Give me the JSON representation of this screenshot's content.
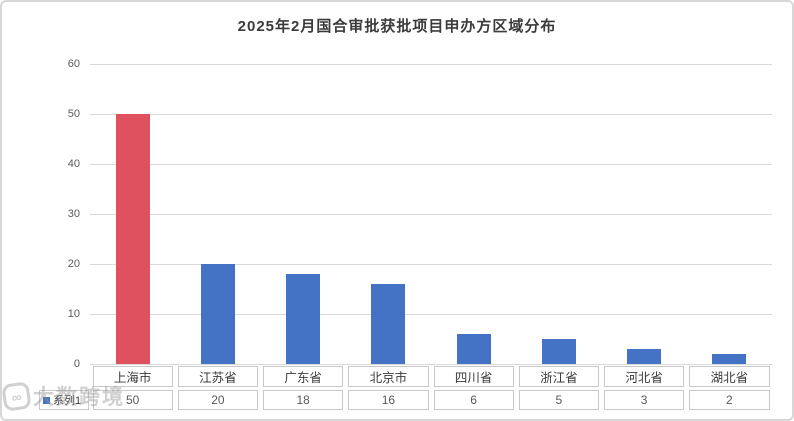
{
  "title": "2025年2月国合审批获批项目申办方区域分布",
  "chart_data": {
    "type": "bar",
    "title": "2025年2月国合审批获批项目申办方区域分布",
    "categories": [
      "上海市",
      "江苏省",
      "广东省",
      "北京市",
      "四川省",
      "浙江省",
      "河北省",
      "湖北省"
    ],
    "series": [
      {
        "name": "系列1",
        "values": [
          50,
          20,
          18,
          16,
          6,
          5,
          3,
          2
        ]
      }
    ],
    "xlabel": "",
    "ylabel": "",
    "ylim": [
      0,
      60
    ],
    "yticks": [
      0,
      10,
      20,
      30,
      40,
      50,
      60
    ],
    "grid": "horizontal",
    "legend_position": "data-table-left",
    "data_table_shown": true,
    "colors": {
      "bar_default": "#4472c4",
      "bar_highlight": "#e0515f",
      "highlight_index": 0,
      "gridline": "#d9d9d9",
      "axis_text": "#595959",
      "table_border": "#c9c9c9",
      "title_text": "#3b3b3b"
    }
  },
  "watermark": {
    "logo_glyph": "∞",
    "text": "大数跨境"
  }
}
